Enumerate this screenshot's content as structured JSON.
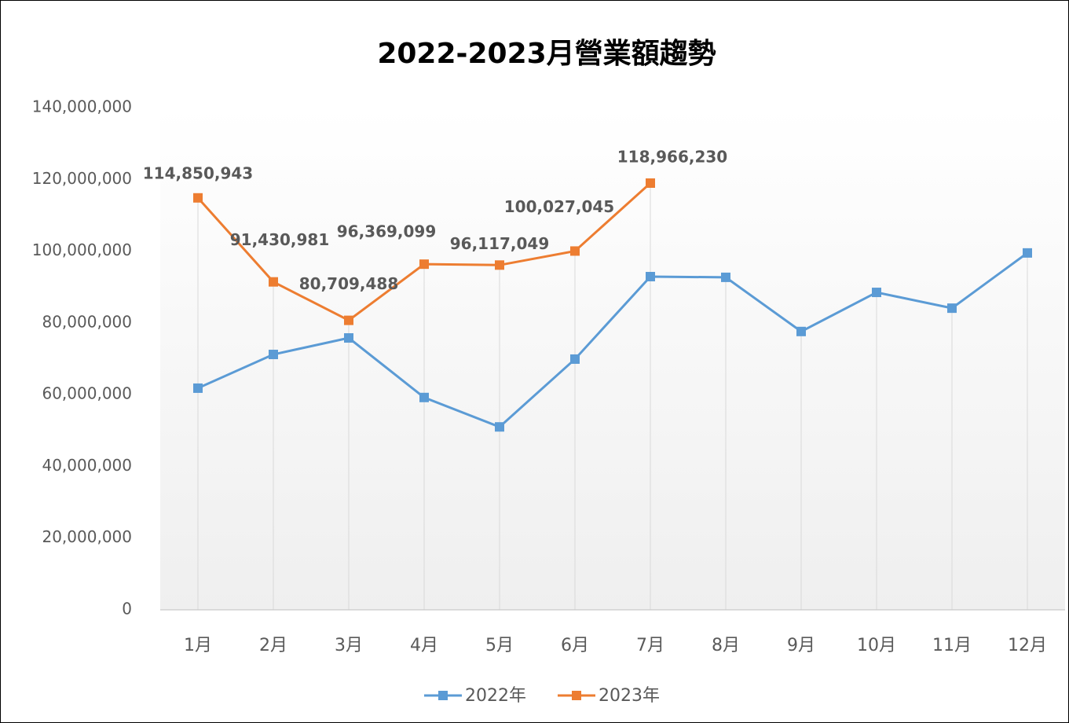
{
  "chart_data": {
    "type": "line",
    "title": "2022-2023月營業額趨勢",
    "categories": [
      "1月",
      "2月",
      "3月",
      "4月",
      "5月",
      "6月",
      "7月",
      "8月",
      "9月",
      "10月",
      "11月",
      "12月"
    ],
    "series": [
      {
        "name": "2022年",
        "color": "#5b9bd5",
        "values": [
          61800000,
          71200000,
          75800000,
          59200000,
          51000000,
          69900000,
          92900000,
          92700000,
          77600000,
          88500000,
          84100000,
          99500000
        ]
      },
      {
        "name": "2023年",
        "color": "#ed7d31",
        "values": [
          114850943,
          91430981,
          80709488,
          96369099,
          96117049,
          100027045,
          118966230,
          null,
          null,
          null,
          null,
          null
        ],
        "value_labels": [
          "114,850,943",
          "91,430,981",
          "80,709,488",
          "96,369,099",
          "96,117,049",
          "100,027,045",
          "118,966,230",
          null,
          null,
          null,
          null,
          null
        ]
      }
    ],
    "ylim": [
      0,
      140000000
    ],
    "yticks": [
      0,
      {
        "value": 20000000,
        "label": "20,000,000"
      },
      {
        "value": 40000000,
        "label": "40,000,000"
      },
      {
        "value": 60000000,
        "label": "60,000,000"
      },
      {
        "value": 80000000,
        "label": "80,000,000"
      },
      {
        "value": 100000000,
        "label": "100,000,000"
      },
      {
        "value": 120000000,
        "label": "120,000,000"
      },
      {
        "value": 140000000,
        "label": "140,000,000"
      }
    ],
    "legend": "bottom"
  }
}
